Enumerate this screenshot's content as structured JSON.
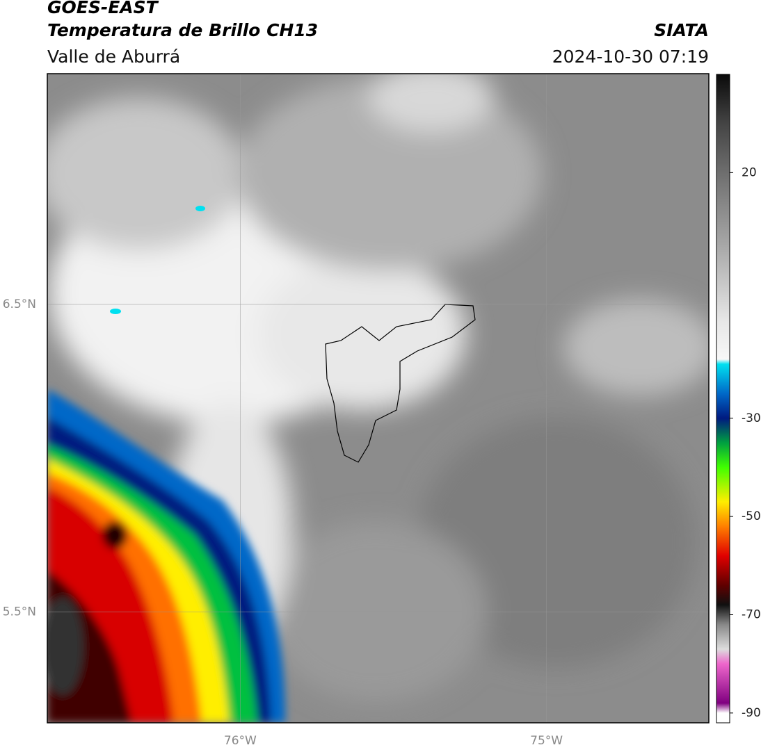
{
  "header": {
    "title": "GOES-EAST",
    "subtitle": "Temperatura de Brillo CH13",
    "region": "Valle de Aburrá",
    "agency": "SIATA",
    "datetime": "2024-10-30 07:19"
  },
  "map": {
    "ylim": [
      5.14,
      7.25
    ],
    "xlim": [
      -76.63,
      -74.47
    ],
    "yticks": [
      {
        "value": 6.5,
        "label": "6.5°N"
      },
      {
        "value": 5.5,
        "label": "5.5°N"
      }
    ],
    "xticks": [
      {
        "value": -76,
        "label": "76°W"
      },
      {
        "value": -75,
        "label": "75°W"
      }
    ]
  },
  "colorbar": {
    "lim": [
      -92,
      40
    ],
    "ticks": [
      20,
      -30,
      -50,
      -70,
      -90
    ],
    "stops": [
      {
        "value": 40,
        "color": "#0a0a0a"
      },
      {
        "value": 30,
        "color": "#444444"
      },
      {
        "value": 20,
        "color": "#6e6e6e"
      },
      {
        "value": 5,
        "color": "#a8a8a8"
      },
      {
        "value": -10,
        "color": "#e6e6e6"
      },
      {
        "value": -18,
        "color": "#f8f8f8"
      },
      {
        "value": -19,
        "color": "#00e0f0"
      },
      {
        "value": -25,
        "color": "#0068c8"
      },
      {
        "value": -30,
        "color": "#001a80"
      },
      {
        "value": -35,
        "color": "#00a040"
      },
      {
        "value": -40,
        "color": "#40ff00"
      },
      {
        "value": -47,
        "color": "#ffee00"
      },
      {
        "value": -52,
        "color": "#ff8000"
      },
      {
        "value": -58,
        "color": "#e00000"
      },
      {
        "value": -64,
        "color": "#600000"
      },
      {
        "value": -68,
        "color": "#101010"
      },
      {
        "value": -72,
        "color": "#888888"
      },
      {
        "value": -77,
        "color": "#dddddd"
      },
      {
        "value": -80,
        "color": "#ee66cc"
      },
      {
        "value": -88,
        "color": "#800080"
      },
      {
        "value": -90,
        "color": "#ffffff"
      }
    ]
  }
}
